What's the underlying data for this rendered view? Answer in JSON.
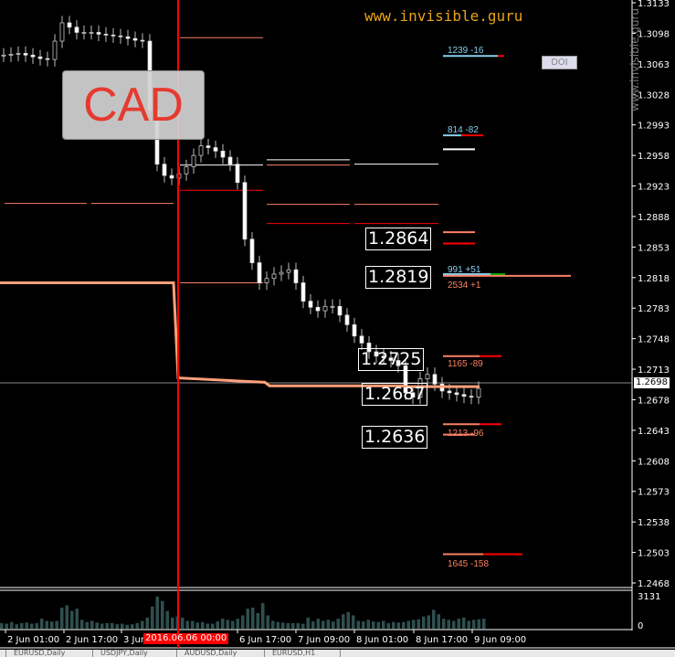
{
  "symbol_label": "CAD",
  "website": "www.invisible.guru",
  "watermark": "www.invisible.guru",
  "doi_button": "DOI",
  "current_price": "1.2698",
  "crosshair_time": "2016.06.06 00:00",
  "tabs": [
    "EURUSD,Daily",
    "USDJPY,Daily",
    "AUDUSD,Daily",
    "EURUSD,H1"
  ],
  "price_boxes": [
    "1.2864",
    "1.2819",
    "1.2725",
    "1.2687",
    "1.2636"
  ],
  "level_labels": [
    "1239 -16",
    "814 -82",
    "991 +51",
    "2534 +1",
    "1165 -89",
    "1213 -96",
    "1645 -158"
  ],
  "volume_axis": [
    "3131",
    "0"
  ],
  "colors": {
    "background": "#000000",
    "candle": "#ffffff",
    "bull_marker": "#00ff00",
    "ma": "#ffa07a",
    "red": "#ff0000",
    "blue_level": "#87ceeb",
    "salmon": "#fa8064"
  },
  "chart_data": {
    "type": "candlestick",
    "ylim": [
      1.2468,
      1.3133
    ],
    "y_ticks": [
      "1.3133",
      "1.3098",
      "1.3063",
      "1.3028",
      "1.2993",
      "1.2958",
      "1.2923",
      "1.2888",
      "1.2853",
      "1.2818",
      "1.2783",
      "1.2748",
      "1.2713",
      "1.2678",
      "1.2643",
      "1.2608",
      "1.2573",
      "1.2538",
      "1.2503",
      "1.2468"
    ],
    "x_ticks": [
      "2 Jun 01:00",
      "2 Jun 17:00",
      "3 Jun",
      "2016.06.06 00:00",
      "6 Jun 17:00",
      "7 Jun 09:00",
      "8 Jun 01:00",
      "8 Jun 17:00",
      "9 Jun 09:00"
    ],
    "closes": [
      1.3073,
      1.3074,
      1.3075,
      1.3073,
      1.3071,
      1.3069,
      1.3068,
      1.3089,
      1.311,
      1.3105,
      1.3099,
      1.3099,
      1.3099,
      1.3097,
      1.3096,
      1.3095,
      1.3094,
      1.3092,
      1.309,
      1.3089,
      1.301,
      1.2948,
      1.2935,
      1.2932,
      1.2937,
      1.2945,
      1.2958,
      1.2969,
      1.2967,
      1.2963,
      1.2956,
      1.2948,
      1.2927,
      1.2862,
      1.2835,
      1.2812,
      1.2817,
      1.2822,
      1.2824,
      1.2827,
      1.2812,
      1.2791,
      1.2784,
      1.278,
      1.2785,
      1.2785,
      1.2775,
      1.2764,
      1.2751,
      1.2743,
      1.2733,
      1.2728,
      1.2726,
      1.2723,
      1.2717,
      1.2686,
      1.2681,
      1.2702,
      1.2707,
      1.2696,
      1.2688,
      1.2686,
      1.2684,
      1.2682,
      1.2681,
      1.2691
    ],
    "ma": [
      1.2812,
      1.2812,
      1.2703,
      1.2698,
      1.2694,
      1.2693
    ],
    "levels": [
      1.3093,
      1.2903,
      1.2947,
      1.2953,
      1.2948,
      1.2918,
      1.2902,
      1.288,
      1.2812,
      1.3072,
      1.2981,
      1.2965,
      1.287,
      1.2857,
      1.2822,
      1.282,
      1.2728,
      1.265,
      1.2638,
      1.2501
    ],
    "volume": [
      500,
      450,
      600,
      400,
      500,
      550,
      450,
      500,
      900,
      700,
      650,
      700,
      1900,
      2100,
      1600,
      1800,
      800,
      600,
      700,
      550,
      450,
      500,
      500,
      400,
      450,
      350,
      400,
      500,
      700,
      1000,
      2000,
      2900,
      2500,
      1600,
      1000,
      1100,
      1000,
      700,
      700,
      550,
      600,
      450,
      450,
      650,
      900,
      800,
      700,
      900,
      1200,
      1800,
      1900,
      1400,
      2300,
      1200,
      700,
      600,
      550,
      500,
      500,
      500,
      450,
      1000,
      650,
      900,
      700,
      800,
      650,
      900,
      1300,
      1500,
      1200,
      700,
      650,
      800,
      650,
      600,
      700,
      500,
      600,
      550,
      600,
      700,
      800,
      850,
      1100,
      1200,
      1700,
      1300,
      900,
      800,
      700,
      900,
      1000,
      700,
      800,
      850,
      900
    ]
  }
}
